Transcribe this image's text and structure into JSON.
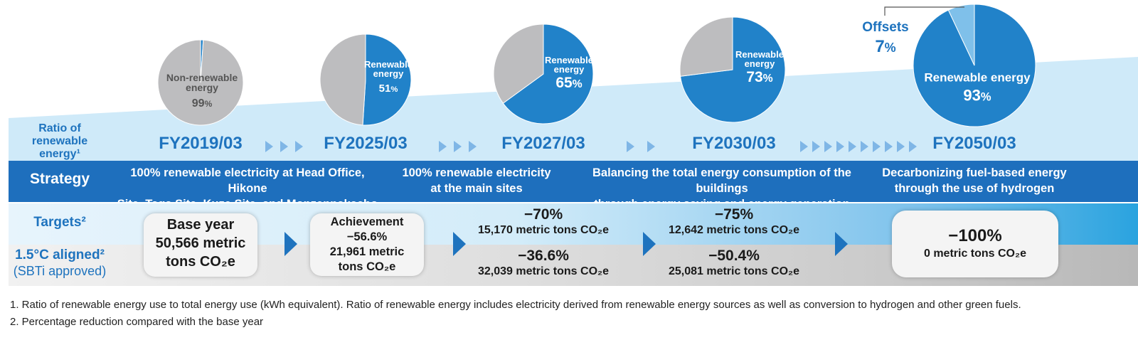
{
  "colors": {
    "accent": "#1e73be",
    "renewable": "#2182c9",
    "nonrenewable": "#bdbdbf",
    "offsets": "#7fc0ea",
    "band": "#c9e8f8"
  },
  "row_labels": {
    "ratio": [
      "Ratio of",
      "renewable",
      "energy¹"
    ],
    "strategy": "Strategy",
    "targets": "Targets²",
    "aligned": "1.5°C aligned²",
    "aligned_sub": "(SBTi approved)"
  },
  "milestones": [
    {
      "year": "FY2019/03",
      "pie": {
        "renewable_pct": 1,
        "label": [
          "Non-renewable",
          "energy"
        ],
        "value": "99",
        "unit": "%"
      },
      "strategy": [
        "100% renewable electricity at Head Office, Hikone",
        "Site, Taga Site, Kuze Site, and Monzennakacho Site"
      ],
      "target_box": [
        "Base year",
        "50,566 metric",
        "tons CO₂e"
      ]
    },
    {
      "year": "FY2025/03",
      "pie": {
        "renewable_pct": 51,
        "label": [
          "Renewable",
          "energy"
        ],
        "value": "51",
        "unit": "%"
      },
      "strategy": [
        "100% renewable electricity",
        "at the main sites"
      ],
      "target_box": [
        "Achievement",
        "−56.6%",
        "21,961 metric",
        "tons CO₂e"
      ]
    },
    {
      "year": "FY2027/03",
      "pie": {
        "renewable_pct": 65,
        "label": [
          "Renewable",
          "energy"
        ],
        "value": "65",
        "unit": "%"
      },
      "targets": {
        "pct": "−70%",
        "tons": "15,170 metric tons CO₂e"
      },
      "aligned": {
        "pct": "−36.6%",
        "tons": "32,039 metric tons CO₂e"
      }
    },
    {
      "year": "FY2030/03",
      "pie": {
        "renewable_pct": 73,
        "label": [
          "Renewable",
          "energy"
        ],
        "value": "73",
        "unit": "%"
      },
      "strategy": [
        "Balancing the total energy consumption of the buildings",
        "through energy saving and energy generation"
      ],
      "targets": {
        "pct": "−75%",
        "tons": "12,642 metric tons CO₂e"
      },
      "aligned": {
        "pct": "−50.4%",
        "tons": "25,081 metric tons CO₂e"
      }
    },
    {
      "year": "FY2050/03",
      "pie": {
        "renewable_pct": 93,
        "offsets_pct": 7,
        "label": [
          "Renewable energy"
        ],
        "value": "93",
        "unit": "%"
      },
      "offsets": {
        "label": "Offsets",
        "value": "7",
        "unit": "%"
      },
      "strategy": [
        "Decarbonizing fuel-based energy",
        "through the use of hydrogen"
      ],
      "target_box": [
        "−100%",
        "0 metric tons CO₂e"
      ]
    }
  ],
  "footnotes": [
    "1. Ratio of renewable energy use to total energy use (kWh equivalent). Ratio of renewable energy includes electricity derived from renewable energy sources as well as conversion to hydrogen and other green fuels.",
    "2. Percentage reduction compared with the base year"
  ]
}
